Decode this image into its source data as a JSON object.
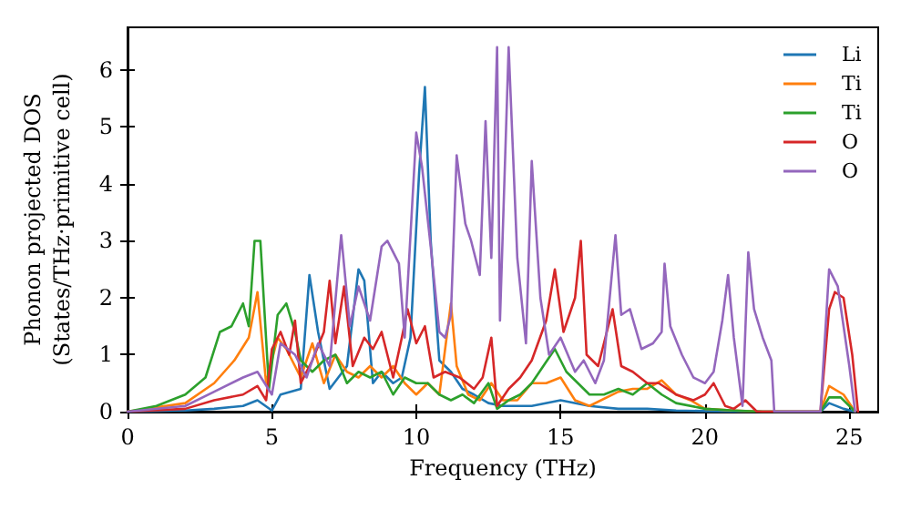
{
  "chart_data": {
    "type": "line",
    "xlabel": "Frequency (THz)",
    "ylabel": "Phonon projected DOS\n(States/THz·primitive cell)",
    "xlim": [
      0,
      26
    ],
    "ylim": [
      0,
      6.75
    ],
    "xticks": [
      0,
      5,
      10,
      15,
      20,
      25
    ],
    "yticks": [
      0,
      1,
      2,
      3,
      4,
      5,
      6
    ],
    "grid": false,
    "legend": "top right",
    "marker": "none",
    "line_style": "solid",
    "series": [
      {
        "name": "Li",
        "color": "#1f77b4",
        "x": [
          0,
          2,
          3,
          4,
          4.5,
          5,
          5.3,
          6,
          6.3,
          6.6,
          7,
          7.3,
          7.6,
          8,
          8.2,
          8.5,
          8.8,
          9.2,
          9.5,
          9.8,
          10.1,
          10.3,
          10.5,
          10.8,
          11.2,
          11.6,
          12,
          12.5,
          13,
          14,
          15,
          16,
          17,
          18,
          19,
          20,
          22,
          24,
          24.3,
          24.8,
          25.2
        ],
        "values": [
          0,
          0.02,
          0.05,
          0.1,
          0.2,
          0.02,
          0.3,
          0.4,
          2.4,
          1.4,
          0.4,
          0.6,
          0.8,
          2.5,
          2.3,
          0.5,
          0.7,
          0.5,
          0.6,
          1.3,
          4.2,
          5.7,
          3.0,
          0.9,
          0.7,
          0.4,
          0.3,
          0.15,
          0.1,
          0.1,
          0.2,
          0.1,
          0.05,
          0.05,
          0.02,
          0.01,
          0,
          0,
          0.15,
          0.05,
          0
        ]
      },
      {
        "name": "Ti",
        "color": "#ff7f0e",
        "x": [
          0,
          2,
          3,
          3.7,
          4.2,
          4.5,
          4.8,
          5.2,
          5.5,
          6,
          6.4,
          6.8,
          7.2,
          7.6,
          8,
          8.4,
          8.8,
          9.2,
          9.6,
          10,
          10.4,
          10.8,
          11.2,
          11.4,
          11.8,
          12.2,
          12.6,
          13,
          13.5,
          14,
          14.5,
          15,
          15.5,
          16,
          17,
          17.5,
          18,
          18.5,
          19,
          19.5,
          20,
          21,
          22,
          24,
          24.3,
          24.8,
          25.2
        ],
        "values": [
          0,
          0.15,
          0.5,
          0.9,
          1.3,
          2.1,
          0.5,
          1.3,
          1.1,
          0.6,
          1.2,
          0.5,
          1.0,
          0.7,
          0.6,
          0.8,
          0.6,
          0.8,
          0.5,
          0.3,
          0.5,
          0.3,
          1.9,
          0.8,
          0.3,
          0.2,
          0.5,
          0.2,
          0.2,
          0.5,
          0.5,
          0.6,
          0.2,
          0.1,
          0.35,
          0.4,
          0.4,
          0.55,
          0.3,
          0.2,
          0.05,
          0.02,
          0,
          0,
          0.45,
          0.3,
          0
        ]
      },
      {
        "name": "Ti",
        "color": "#2ca02c",
        "x": [
          0,
          1,
          2,
          2.7,
          3.2,
          3.6,
          4,
          4.2,
          4.4,
          4.6,
          4.9,
          5.2,
          5.5,
          5.8,
          6,
          6.4,
          6.8,
          7.2,
          7.6,
          8,
          8.4,
          8.8,
          9.2,
          9.6,
          10,
          10.4,
          10.8,
          11.2,
          11.6,
          12,
          12.5,
          12.8,
          13.2,
          13.6,
          14,
          14.4,
          14.8,
          15.2,
          15.6,
          16,
          16.5,
          17,
          17.5,
          18,
          18.5,
          19,
          20,
          21,
          22,
          24,
          24.3,
          24.7,
          25.2
        ],
        "values": [
          0,
          0.1,
          0.3,
          0.6,
          1.4,
          1.5,
          1.9,
          1.5,
          3.0,
          3.0,
          0.4,
          1.7,
          1.9,
          1.4,
          0.9,
          0.7,
          0.9,
          1.0,
          0.5,
          0.7,
          0.6,
          0.7,
          0.3,
          0.6,
          0.5,
          0.5,
          0.3,
          0.2,
          0.3,
          0.15,
          0.5,
          0.05,
          0.2,
          0.3,
          0.5,
          0.8,
          1.1,
          0.7,
          0.5,
          0.3,
          0.3,
          0.4,
          0.3,
          0.5,
          0.3,
          0.15,
          0.05,
          0.02,
          0,
          0,
          0.25,
          0.25,
          0
        ]
      },
      {
        "name": "O",
        "color": "#d62728",
        "x": [
          0,
          2,
          3,
          4,
          4.5,
          4.8,
          5,
          5.3,
          5.6,
          5.8,
          6,
          6.4,
          6.8,
          7,
          7.2,
          7.5,
          7.8,
          8.2,
          8.5,
          8.8,
          9.2,
          9.5,
          9.7,
          10,
          10.3,
          10.6,
          11,
          11.5,
          12,
          12.3,
          12.6,
          12.8,
          13.2,
          13.6,
          14,
          14.5,
          14.8,
          15.1,
          15.5,
          15.7,
          15.9,
          16.3,
          16.8,
          17.1,
          17.5,
          18,
          18.4,
          19,
          19.6,
          20,
          20.3,
          20.7,
          21,
          21.4,
          21.8,
          24,
          24.3,
          24.5,
          24.8,
          25.1,
          25.3
        ],
        "values": [
          0,
          0.05,
          0.2,
          0.3,
          0.45,
          0.2,
          1.1,
          1.4,
          1.0,
          1.6,
          0.5,
          0.9,
          1.4,
          2.3,
          1.2,
          2.2,
          0.8,
          1.3,
          1.1,
          1.4,
          0.6,
          1.3,
          1.8,
          1.2,
          1.5,
          0.6,
          0.7,
          0.6,
          0.4,
          0.6,
          1.3,
          0.1,
          0.4,
          0.6,
          0.9,
          1.6,
          2.5,
          1.4,
          2.0,
          3.0,
          1.0,
          0.8,
          1.8,
          0.8,
          0.7,
          0.5,
          0.5,
          0.3,
          0.2,
          0.3,
          0.5,
          0.1,
          0.05,
          0.2,
          0,
          0,
          1.8,
          2.1,
          2.0,
          1.0,
          0
        ]
      },
      {
        "name": "O",
        "color": "#9467bd",
        "x": [
          0,
          2,
          3,
          4,
          4.5,
          5,
          5.3,
          5.8,
          6.2,
          6.6,
          7,
          7.4,
          7.7,
          8,
          8.4,
          8.8,
          9,
          9.4,
          9.6,
          10,
          10.2,
          10.5,
          10.8,
          11,
          11.2,
          11.4,
          11.7,
          11.9,
          12.2,
          12.4,
          12.6,
          12.8,
          12.9,
          13.2,
          13.5,
          13.8,
          14,
          14.3,
          14.6,
          15,
          15.5,
          15.8,
          16.2,
          16.5,
          16.9,
          17.1,
          17.4,
          17.8,
          18.2,
          18.5,
          18.6,
          18.8,
          19.2,
          19.6,
          20,
          20.3,
          20.6,
          20.8,
          21,
          21.3,
          21.5,
          21.7,
          22,
          22.3,
          22.4,
          24,
          24.3,
          24.6,
          25,
          25.2
        ],
        "values": [
          0,
          0.1,
          0.35,
          0.6,
          0.7,
          0.3,
          1.2,
          1.0,
          0.6,
          1.2,
          0.8,
          3.1,
          1.5,
          2.2,
          1.6,
          2.9,
          3.0,
          2.6,
          1.3,
          4.9,
          4.3,
          2.9,
          1.4,
          1.3,
          1.7,
          4.5,
          3.3,
          3.0,
          2.4,
          5.1,
          2.7,
          6.4,
          1.6,
          6.4,
          2.7,
          1.2,
          4.4,
          2.0,
          1.0,
          1.3,
          0.7,
          0.9,
          0.5,
          0.9,
          3.1,
          1.7,
          1.8,
          1.1,
          1.2,
          1.4,
          2.6,
          1.5,
          1.0,
          0.6,
          0.5,
          0.7,
          1.6,
          2.4,
          1.3,
          0.1,
          2.8,
          1.8,
          1.3,
          0.9,
          0,
          0,
          2.5,
          2.2,
          0.8,
          0
        ]
      }
    ]
  }
}
